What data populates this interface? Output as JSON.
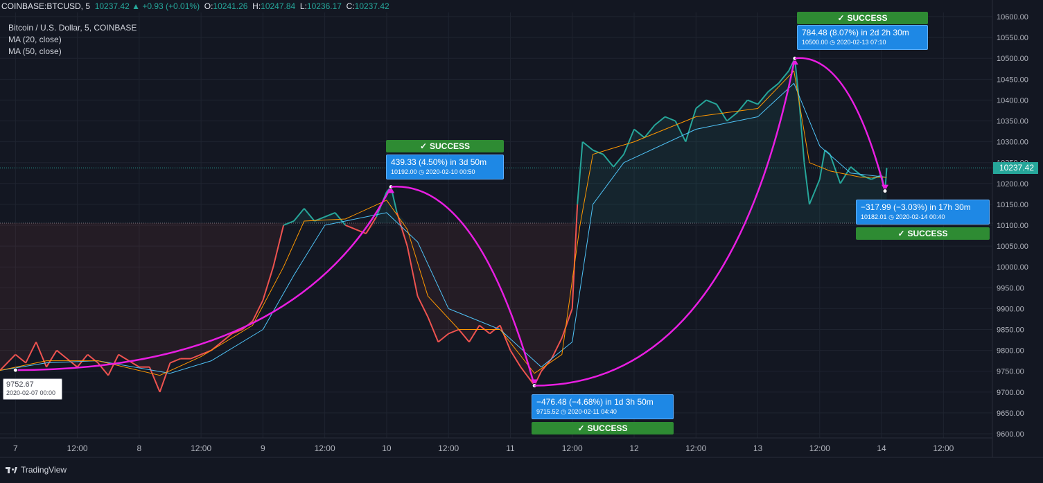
{
  "header": {
    "symbol": "COINBASE:BTCUSD, 5",
    "last": "10237.42",
    "arrow": "▲",
    "change": "+0.93 (+0.01%)",
    "o_label": "O:",
    "o": "10241.26",
    "h_label": "H:",
    "h": "10247.84",
    "l_label": "L:",
    "l": "10236.17",
    "c_label": "C:",
    "c": "10237.42"
  },
  "legend": {
    "title": "Bitcoin / U.S. Dollar, 5, COINBASE",
    "ma20": "MA (20, close)",
    "ma50": "MA (50, close)"
  },
  "branding": {
    "logo_text": "TradingView"
  },
  "last_price_label": "10237.42",
  "anchor": {
    "price": "9752.67",
    "date": "2020-02-07 00:00"
  },
  "annotations": [
    {
      "status": "SUCCESS",
      "line1": "439.33 (4.50%) in 3d 50m",
      "price": "10192.00",
      "date": "2020-02-10  00:50"
    },
    {
      "status": "SUCCESS",
      "line1": "−476.48 (−4.68%) in 1d 3h 50m",
      "price": "9715.52",
      "date": "2020-02-11  04:40"
    },
    {
      "status": "SUCCESS",
      "line1": "784.48 (8.07%) in 2d 2h 30m",
      "price": "10500.00",
      "date": "2020-02-13  07:10"
    },
    {
      "status": "SUCCESS",
      "line1": "−317.99 (−3.03%) in 17h 30m",
      "price": "10182.01",
      "date": "2020-02-14  00:40"
    }
  ],
  "colors": {
    "background": "#131722",
    "price_down": "#ef5350",
    "price_up": "#26a69a",
    "ma20": "#ff9800",
    "ma50": "#4fc3f7",
    "arc": "#e91ee2",
    "success": "#2e8b33",
    "callout": "#1e88e5"
  },
  "chart_data": {
    "type": "line",
    "ylim": [
      9590,
      10610
    ],
    "xlim": [
      "2020-02-06 21:00",
      "2020-02-14 21:30"
    ],
    "y_ticks": [
      "9600.00",
      "9650.00",
      "9700.00",
      "9750.00",
      "9800.00",
      "9850.00",
      "9900.00",
      "9950.00",
      "10000.00",
      "10050.00",
      "10100.00",
      "10150.00",
      "10200.00",
      "10250.00",
      "10300.00",
      "10350.00",
      "10400.00",
      "10450.00",
      "10500.00",
      "10550.00",
      "10600.00"
    ],
    "x_ticks": [
      {
        "t": "2020-02-07 00:00",
        "label": "7"
      },
      {
        "t": "2020-02-07 12:00",
        "label": "12:00"
      },
      {
        "t": "2020-02-08 00:00",
        "label": "8"
      },
      {
        "t": "2020-02-08 12:00",
        "label": "12:00"
      },
      {
        "t": "2020-02-09 00:00",
        "label": "9"
      },
      {
        "t": "2020-02-09 12:00",
        "label": "12:00"
      },
      {
        "t": "2020-02-10 00:00",
        "label": "10"
      },
      {
        "t": "2020-02-10 12:00",
        "label": "12:00"
      },
      {
        "t": "2020-02-11 00:00",
        "label": "11"
      },
      {
        "t": "2020-02-11 12:00",
        "label": "12:00"
      },
      {
        "t": "2020-02-12 00:00",
        "label": "12"
      },
      {
        "t": "2020-02-12 12:00",
        "label": "12:00"
      },
      {
        "t": "2020-02-13 00:00",
        "label": "13"
      },
      {
        "t": "2020-02-13 12:00",
        "label": "12:00"
      },
      {
        "t": "2020-02-14 00:00",
        "label": "14"
      },
      {
        "t": "2020-02-14 12:00",
        "label": "12:00"
      }
    ],
    "baseline_price": 10105,
    "last_price": 10237.42,
    "price_series": {
      "name": "BTCUSD",
      "points": [
        [
          "2020-02-06 21:00",
          9752
        ],
        [
          "2020-02-07 00:00",
          9790
        ],
        [
          "2020-02-07 02:00",
          9770
        ],
        [
          "2020-02-07 04:00",
          9820
        ],
        [
          "2020-02-07 06:00",
          9760
        ],
        [
          "2020-02-07 08:00",
          9800
        ],
        [
          "2020-02-07 10:00",
          9780
        ],
        [
          "2020-02-07 12:00",
          9760
        ],
        [
          "2020-02-07 14:00",
          9790
        ],
        [
          "2020-02-07 16:00",
          9770
        ],
        [
          "2020-02-07 18:00",
          9740
        ],
        [
          "2020-02-07 20:00",
          9790
        ],
        [
          "2020-02-08 00:00",
          9760
        ],
        [
          "2020-02-08 02:00",
          9760
        ],
        [
          "2020-02-08 04:00",
          9700
        ],
        [
          "2020-02-08 06:00",
          9770
        ],
        [
          "2020-02-08 08:00",
          9780
        ],
        [
          "2020-02-08 10:00",
          9780
        ],
        [
          "2020-02-08 12:00",
          9790
        ],
        [
          "2020-02-08 14:00",
          9800
        ],
        [
          "2020-02-08 16:00",
          9820
        ],
        [
          "2020-02-08 18:00",
          9840
        ],
        [
          "2020-02-08 20:00",
          9850
        ],
        [
          "2020-02-08 22:00",
          9870
        ],
        [
          "2020-02-09 00:00",
          9920
        ],
        [
          "2020-02-09 02:00",
          10000
        ],
        [
          "2020-02-09 04:00",
          10100
        ],
        [
          "2020-02-09 06:00",
          10110
        ],
        [
          "2020-02-09 08:00",
          10140
        ],
        [
          "2020-02-09 10:00",
          10110
        ],
        [
          "2020-02-09 12:00",
          10120
        ],
        [
          "2020-02-09 14:00",
          10130
        ],
        [
          "2020-02-09 16:00",
          10100
        ],
        [
          "2020-02-09 18:00",
          10090
        ],
        [
          "2020-02-09 20:00",
          10080
        ],
        [
          "2020-02-09 22:00",
          10120
        ],
        [
          "2020-02-10 00:00",
          10180
        ],
        [
          "2020-02-10 00:50",
          10192
        ],
        [
          "2020-02-10 02:00",
          10130
        ],
        [
          "2020-02-10 04:00",
          10050
        ],
        [
          "2020-02-10 06:00",
          9930
        ],
        [
          "2020-02-10 08:00",
          9880
        ],
        [
          "2020-02-10 10:00",
          9820
        ],
        [
          "2020-02-10 12:00",
          9840
        ],
        [
          "2020-02-10 14:00",
          9850
        ],
        [
          "2020-02-10 16:00",
          9820
        ],
        [
          "2020-02-10 18:00",
          9860
        ],
        [
          "2020-02-10 20:00",
          9840
        ],
        [
          "2020-02-10 22:00",
          9860
        ],
        [
          "2020-02-11 00:00",
          9800
        ],
        [
          "2020-02-11 02:00",
          9760
        ],
        [
          "2020-02-11 04:40",
          9716
        ],
        [
          "2020-02-11 06:00",
          9750
        ],
        [
          "2020-02-11 08:00",
          9780
        ],
        [
          "2020-02-11 10:00",
          9830
        ],
        [
          "2020-02-11 12:00",
          9900
        ],
        [
          "2020-02-11 13:00",
          10150
        ],
        [
          "2020-02-11 14:00",
          10300
        ],
        [
          "2020-02-11 16:00",
          10280
        ],
        [
          "2020-02-11 18:00",
          10270
        ],
        [
          "2020-02-11 20:00",
          10240
        ],
        [
          "2020-02-11 22:00",
          10270
        ],
        [
          "2020-02-12 00:00",
          10330
        ],
        [
          "2020-02-12 02:00",
          10310
        ],
        [
          "2020-02-12 04:00",
          10340
        ],
        [
          "2020-02-12 06:00",
          10360
        ],
        [
          "2020-02-12 08:00",
          10350
        ],
        [
          "2020-02-12 10:00",
          10300
        ],
        [
          "2020-02-12 12:00",
          10380
        ],
        [
          "2020-02-12 14:00",
          10400
        ],
        [
          "2020-02-12 16:00",
          10390
        ],
        [
          "2020-02-12 18:00",
          10350
        ],
        [
          "2020-02-12 20:00",
          10370
        ],
        [
          "2020-02-12 22:00",
          10400
        ],
        [
          "2020-02-13 00:00",
          10390
        ],
        [
          "2020-02-13 02:00",
          10420
        ],
        [
          "2020-02-13 04:00",
          10440
        ],
        [
          "2020-02-13 06:00",
          10470
        ],
        [
          "2020-02-13 07:10",
          10500
        ],
        [
          "2020-02-13 08:00",
          10400
        ],
        [
          "2020-02-13 09:00",
          10250
        ],
        [
          "2020-02-13 10:00",
          10150
        ],
        [
          "2020-02-13 11:00",
          10180
        ],
        [
          "2020-02-13 12:00",
          10210
        ],
        [
          "2020-02-13 13:00",
          10280
        ],
        [
          "2020-02-13 14:00",
          10270
        ],
        [
          "2020-02-13 16:00",
          10200
        ],
        [
          "2020-02-13 18:00",
          10240
        ],
        [
          "2020-02-13 20:00",
          10220
        ],
        [
          "2020-02-13 22:00",
          10210
        ],
        [
          "2020-02-14 00:00",
          10220
        ],
        [
          "2020-02-14 00:40",
          10182
        ],
        [
          "2020-02-14 01:00",
          10237.42
        ]
      ]
    },
    "ma20": {
      "name": "MA (20, close)",
      "points": [
        [
          "2020-02-06 21:00",
          9752
        ],
        [
          "2020-02-07 06:00",
          9775
        ],
        [
          "2020-02-07 16:00",
          9775
        ],
        [
          "2020-02-08 04:00",
          9740
        ],
        [
          "2020-02-08 12:00",
          9785
        ],
        [
          "2020-02-08 22:00",
          9860
        ],
        [
          "2020-02-09 04:00",
          10000
        ],
        [
          "2020-02-09 08:00",
          10110
        ],
        [
          "2020-02-09 16:00",
          10115
        ],
        [
          "2020-02-10 00:00",
          10160
        ],
        [
          "2020-02-10 04:00",
          10090
        ],
        [
          "2020-02-10 08:00",
          9930
        ],
        [
          "2020-02-10 14:00",
          9850
        ],
        [
          "2020-02-10 22:00",
          9850
        ],
        [
          "2020-02-11 04:40",
          9745
        ],
        [
          "2020-02-11 10:00",
          9790
        ],
        [
          "2020-02-11 13:30",
          10100
        ],
        [
          "2020-02-11 16:00",
          10270
        ],
        [
          "2020-02-12 00:00",
          10300
        ],
        [
          "2020-02-12 12:00",
          10360
        ],
        [
          "2020-02-13 00:00",
          10380
        ],
        [
          "2020-02-13 07:00",
          10470
        ],
        [
          "2020-02-13 10:00",
          10250
        ],
        [
          "2020-02-13 14:00",
          10230
        ],
        [
          "2020-02-13 20:00",
          10215
        ],
        [
          "2020-02-14 01:00",
          10215
        ]
      ]
    },
    "ma50": {
      "name": "MA (50, close)",
      "points": [
        [
          "2020-02-06 21:00",
          9752
        ],
        [
          "2020-02-07 06:00",
          9770
        ],
        [
          "2020-02-07 16:00",
          9775
        ],
        [
          "2020-02-08 06:00",
          9745
        ],
        [
          "2020-02-08 14:00",
          9775
        ],
        [
          "2020-02-09 00:00",
          9850
        ],
        [
          "2020-02-09 06:00",
          9980
        ],
        [
          "2020-02-09 12:00",
          10100
        ],
        [
          "2020-02-10 00:00",
          10130
        ],
        [
          "2020-02-10 06:00",
          10060
        ],
        [
          "2020-02-10 12:00",
          9900
        ],
        [
          "2020-02-10 22:00",
          9850
        ],
        [
          "2020-02-11 06:00",
          9760
        ],
        [
          "2020-02-11 12:00",
          9820
        ],
        [
          "2020-02-11 16:00",
          10150
        ],
        [
          "2020-02-11 22:00",
          10250
        ],
        [
          "2020-02-12 12:00",
          10330
        ],
        [
          "2020-02-13 00:00",
          10360
        ],
        [
          "2020-02-13 07:00",
          10440
        ],
        [
          "2020-02-13 12:00",
          10290
        ],
        [
          "2020-02-13 18:00",
          10225
        ],
        [
          "2020-02-14 01:00",
          10215
        ]
      ]
    },
    "arcs": [
      {
        "from": [
          "2020-02-07 00:00",
          9752.67
        ],
        "to": [
          "2020-02-10 00:50",
          10192.0
        ],
        "shape": "concave-up"
      },
      {
        "from": [
          "2020-02-10 00:50",
          10192.0
        ],
        "to": [
          "2020-02-11 04:40",
          9715.52
        ],
        "shape": "concave-down"
      },
      {
        "from": [
          "2020-02-11 04:40",
          9715.52
        ],
        "to": [
          "2020-02-13 07:10",
          10500.0
        ],
        "shape": "concave-up"
      },
      {
        "from": [
          "2020-02-13 07:10",
          10500.0
        ],
        "to": [
          "2020-02-14 00:40",
          10182.01
        ],
        "shape": "concave-down"
      }
    ]
  }
}
